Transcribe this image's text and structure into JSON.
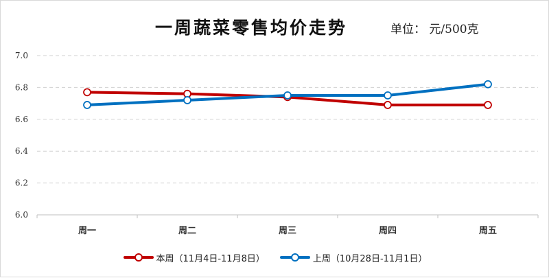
{
  "chart_data": {
    "type": "line",
    "title": "一周蔬菜零售均价走势",
    "unit": "单位： 元/500克",
    "categories": [
      "周一",
      "周二",
      "周三",
      "周四",
      "周五"
    ],
    "y_ticks": [
      "6.0",
      "6.2",
      "6.4",
      "6.6",
      "6.8",
      "7.0"
    ],
    "ylim": [
      6.0,
      7.0
    ],
    "grid": true,
    "legend_position": "bottom",
    "series": [
      {
        "name": "本周（11月4日-11月8日）",
        "color": "#c00000",
        "values": [
          6.77,
          6.76,
          6.74,
          6.69,
          6.69
        ]
      },
      {
        "name": "上周（10月28日-11月1日）",
        "color": "#0070c0",
        "values": [
          6.69,
          6.72,
          6.75,
          6.75,
          6.82
        ]
      }
    ]
  }
}
